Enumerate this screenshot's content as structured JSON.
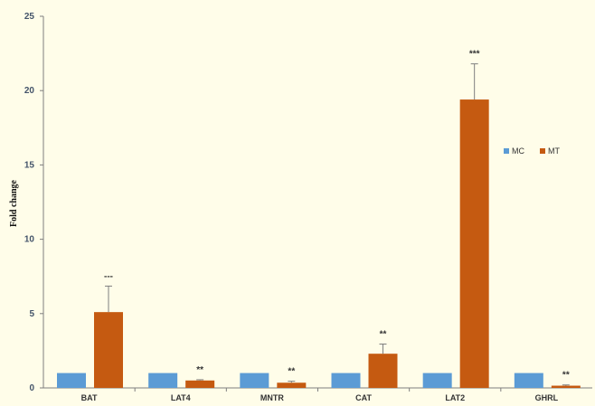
{
  "chart_data": {
    "type": "bar",
    "title": "",
    "xlabel": "",
    "ylabel": "Fold change",
    "ylim": [
      0,
      25
    ],
    "yticks": [
      "0",
      "5",
      "10",
      "15",
      "20",
      "25"
    ],
    "categories": [
      "BAT",
      "LAT4",
      "MNTR",
      "CAT",
      "LAT2",
      "GHRL"
    ],
    "series": [
      {
        "name": "MC",
        "values": [
          1,
          1,
          1,
          1,
          1,
          1
        ],
        "color": "#5b9bd5"
      },
      {
        "name": "MT",
        "values": [
          5.1,
          0.5,
          0.35,
          2.3,
          19.4,
          0.15
        ],
        "color": "#c55a11",
        "error": [
          1.75,
          0.05,
          0.1,
          0.65,
          2.4,
          0.05
        ]
      }
    ],
    "significance": [
      "---",
      "**",
      "**",
      "**",
      "***",
      "**"
    ],
    "legend": {
      "placement": "right",
      "entries": [
        "MC",
        "MT"
      ]
    },
    "grid": false
  }
}
